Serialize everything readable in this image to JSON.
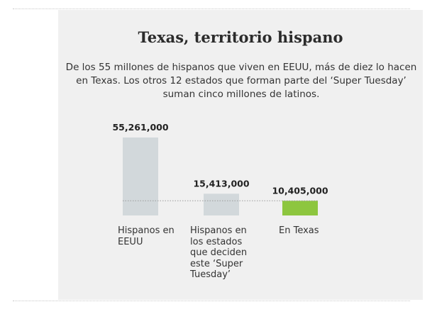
{
  "header": {
    "title": "Texas, territorio hispano",
    "subtitle": "De los 55 millones de hispanos que viven en EEUU, más de diez lo hacen en Texas. Los otros 12 estados que forman parte del ‘Super Tuesday’ suman cinco millones de latinos."
  },
  "colors": {
    "bar_default": "#d2d8db",
    "bar_highlight": "#8dc63f",
    "reference_line": "#9a9a9a"
  },
  "chart_data": {
    "type": "bar",
    "categories": [
      "Hispanos en EEUU",
      "Hispanos en los estados que deciden este ‘Super Tuesday’",
      "En Texas"
    ],
    "values": [
      55261000,
      15413000,
      10405000
    ],
    "value_labels": [
      "55,261,000",
      "15,413,000",
      "10,405,000"
    ],
    "highlight_index": 2,
    "ylim": [
      0,
      55261000
    ]
  }
}
